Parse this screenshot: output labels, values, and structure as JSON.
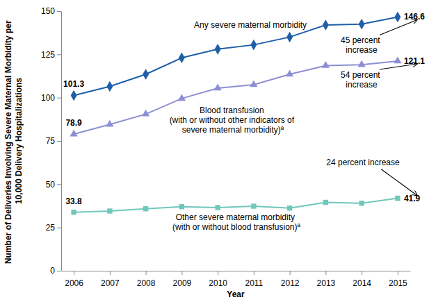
{
  "chart_data": {
    "type": "line",
    "x_label": "Year",
    "y_label": "Number of Deliveries Involving Severe Maternal Morbidity per 10,000 Delivery Hospitalizations",
    "categories": [
      "2006",
      "2007",
      "2008",
      "2009",
      "2010",
      "2011",
      "2012",
      "2013",
      "2014",
      "2015"
    ],
    "ylim": [
      0,
      150
    ],
    "yticks": [
      0,
      25,
      50,
      75,
      100,
      125,
      150
    ],
    "grid": false,
    "series": [
      {
        "name": "Any severe maternal morbidity",
        "color": "#1f5fa8",
        "marker": "diamond",
        "values": [
          101.3,
          106.5,
          113.5,
          123,
          128,
          130.5,
          135,
          142,
          142.5,
          146.6
        ]
      },
      {
        "name": "Blood transfusion (with or without other indicators of severe maternal morbidity)ª",
        "color": "#8c8fd2",
        "marker": "triangle",
        "values": [
          78.9,
          84.5,
          90.5,
          99.5,
          105.5,
          107.5,
          113.5,
          118.5,
          119,
          121.1
        ]
      },
      {
        "name": "Other severe maternal morbidity (with or without blood transfusion)ª",
        "color": "#6fc8bb",
        "marker": "square",
        "values": [
          33.8,
          34.5,
          35.8,
          37,
          36.5,
          37.3,
          36.2,
          39.5,
          39,
          41.9
        ]
      }
    ],
    "annotations": [
      "45 percent increase",
      "54 percent increase",
      "24 percent increase"
    ]
  }
}
